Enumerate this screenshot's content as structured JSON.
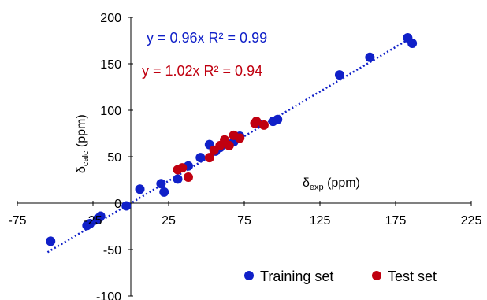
{
  "chart_data": {
    "type": "scatter",
    "xlim": [
      -75,
      225
    ],
    "ylim": [
      -100,
      200
    ],
    "x_ticks": [
      "-75",
      "-25",
      "25",
      "75",
      "125",
      "175",
      "225"
    ],
    "x_tick_values": [
      -75,
      -25,
      25,
      75,
      125,
      175,
      225
    ],
    "y_ticks": [
      "-100",
      "-50",
      "0",
      "50",
      "100",
      "150",
      "200"
    ],
    "y_tick_values": [
      -100,
      -50,
      0,
      50,
      100,
      150,
      200
    ],
    "x_ticks_shown": [
      "-75",
      "25",
      "75",
      "125",
      "175",
      "225"
    ],
    "grid": false,
    "legend_position": "bottom-right",
    "xlabel": {
      "main": "δ",
      "sub": "exp",
      "rest": " (ppm)"
    },
    "ylabel": {
      "main": "δ",
      "sub": "calc",
      "rest": " (ppm)"
    },
    "series": [
      {
        "name": "Training set",
        "color": "#1020c8",
        "equation": "y = 0.96x R² = 0.99",
        "slope": 0.96,
        "points": [
          [
            -53,
            -41
          ],
          [
            -29,
            -24
          ],
          [
            -27,
            -22
          ],
          [
            -22,
            -17
          ],
          [
            -20,
            -14
          ],
          [
            -3,
            -3
          ],
          [
            6,
            15
          ],
          [
            20,
            21
          ],
          [
            22,
            12
          ],
          [
            31,
            26
          ],
          [
            38,
            40
          ],
          [
            46,
            49
          ],
          [
            52,
            63
          ],
          [
            56,
            56
          ],
          [
            59,
            60
          ],
          [
            63,
            64
          ],
          [
            68,
            66
          ],
          [
            70,
            71
          ],
          [
            72,
            72
          ],
          [
            84,
            86
          ],
          [
            94,
            88
          ],
          [
            97,
            90
          ],
          [
            138,
            138
          ],
          [
            158,
            157
          ],
          [
            183,
            178
          ],
          [
            186,
            172
          ]
        ]
      },
      {
        "name": "Test set",
        "color": "#c00010",
        "equation": "y = 1.02x R² = 0.94",
        "slope": 1.02,
        "points": [
          [
            31,
            36
          ],
          [
            34,
            38
          ],
          [
            38,
            28
          ],
          [
            52,
            49
          ],
          [
            55,
            57
          ],
          [
            59,
            62
          ],
          [
            62,
            68
          ],
          [
            65,
            62
          ],
          [
            68,
            73
          ],
          [
            72,
            70
          ],
          [
            82,
            86
          ],
          [
            83,
            88
          ],
          [
            88,
            84
          ]
        ]
      }
    ]
  }
}
